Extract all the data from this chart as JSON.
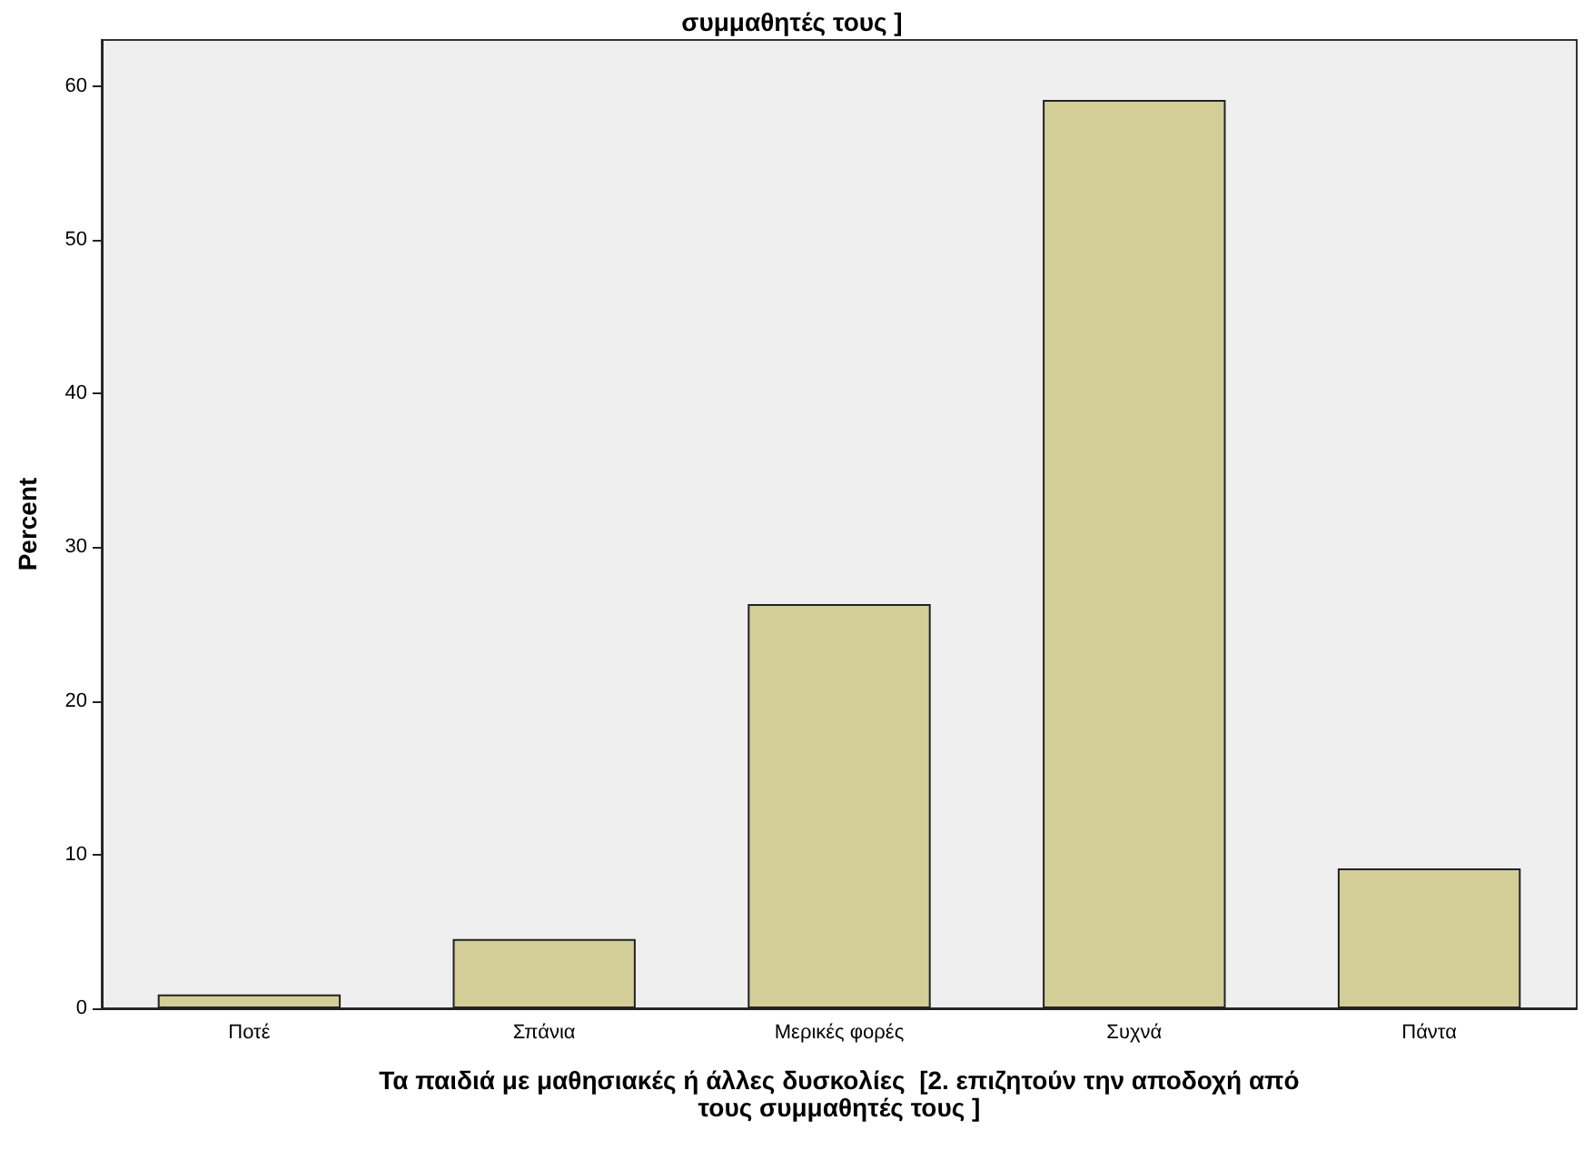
{
  "chart_data": {
    "type": "bar",
    "title": "συμμαθητές τους ]",
    "xlabel": "Τα παιδιά με μαθησιακές ή άλλες δυσκολίες  [2. επιζητούν την αποδοχή από\nτους συμμαθητές τους ]",
    "ylabel": "Percent",
    "categories": [
      "Ποτέ",
      "Σπάνια",
      "Μερικές φορές",
      "Συχνά",
      "Πάντα"
    ],
    "values": [
      0.9,
      4.5,
      26.3,
      59.1,
      9.1
    ],
    "color": "#d3ce98",
    "ylim": [
      0,
      63
    ],
    "yticks": [
      0,
      10,
      20,
      30,
      40,
      50,
      60
    ],
    "grid": false
  }
}
